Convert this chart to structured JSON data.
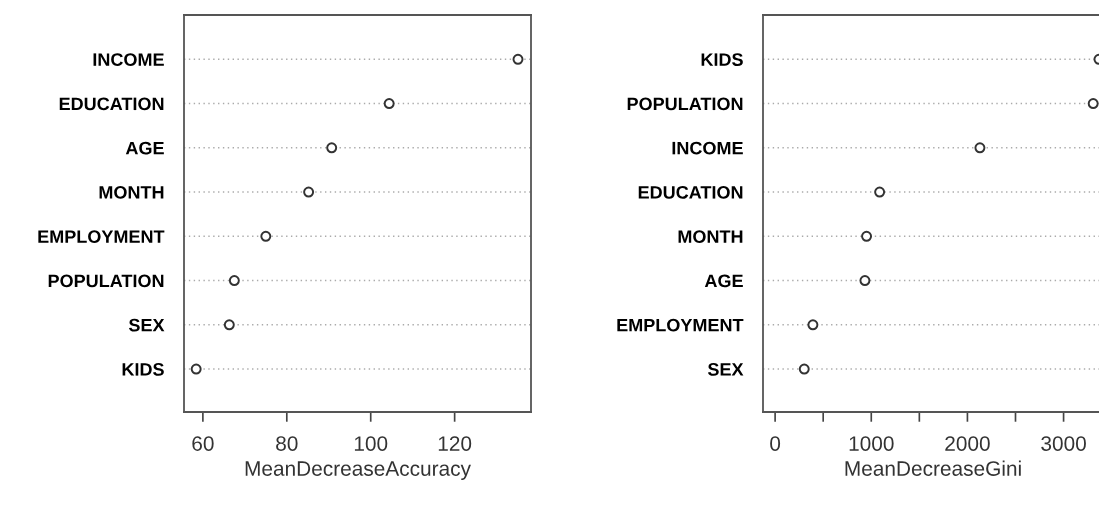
{
  "chart_data": [
    {
      "type": "scatter",
      "orientation": "horizontal",
      "xlabel": "MeanDecreaseAccuracy",
      "categories": [
        "INCOME",
        "EDUCATION",
        "AGE",
        "MONTH",
        "EMPLOYMENT",
        "POPULATION",
        "SEX",
        "KIDS"
      ],
      "values": [
        135.1,
        104.4,
        90.7,
        85.2,
        75.0,
        67.5,
        66.3,
        58.4
      ],
      "color": "#333333",
      "marker": "circle",
      "grid": "y",
      "xlim": [
        55.5,
        138.2
      ],
      "xticks": [
        60,
        80,
        100,
        120
      ]
    },
    {
      "type": "scatter",
      "orientation": "horizontal",
      "xlabel": "MeanDecreaseGini",
      "categories": [
        "KIDS",
        "POPULATION",
        "INCOME",
        "EDUCATION",
        "MONTH",
        "AGE",
        "EMPLOYMENT",
        "SEX"
      ],
      "values": [
        3368,
        3308,
        2130,
        1087,
        951,
        934,
        393,
        303
      ],
      "color": "#333333",
      "marker": "circle",
      "grid": "y",
      "xlim": [
        -126,
        3410
      ],
      "xticks": [
        0,
        {
          "value": 500,
          "label": null
        },
        1000,
        {
          "value": 1500,
          "label": null
        },
        2000,
        {
          "value": 2500,
          "label": null
        },
        3000
      ]
    }
  ]
}
